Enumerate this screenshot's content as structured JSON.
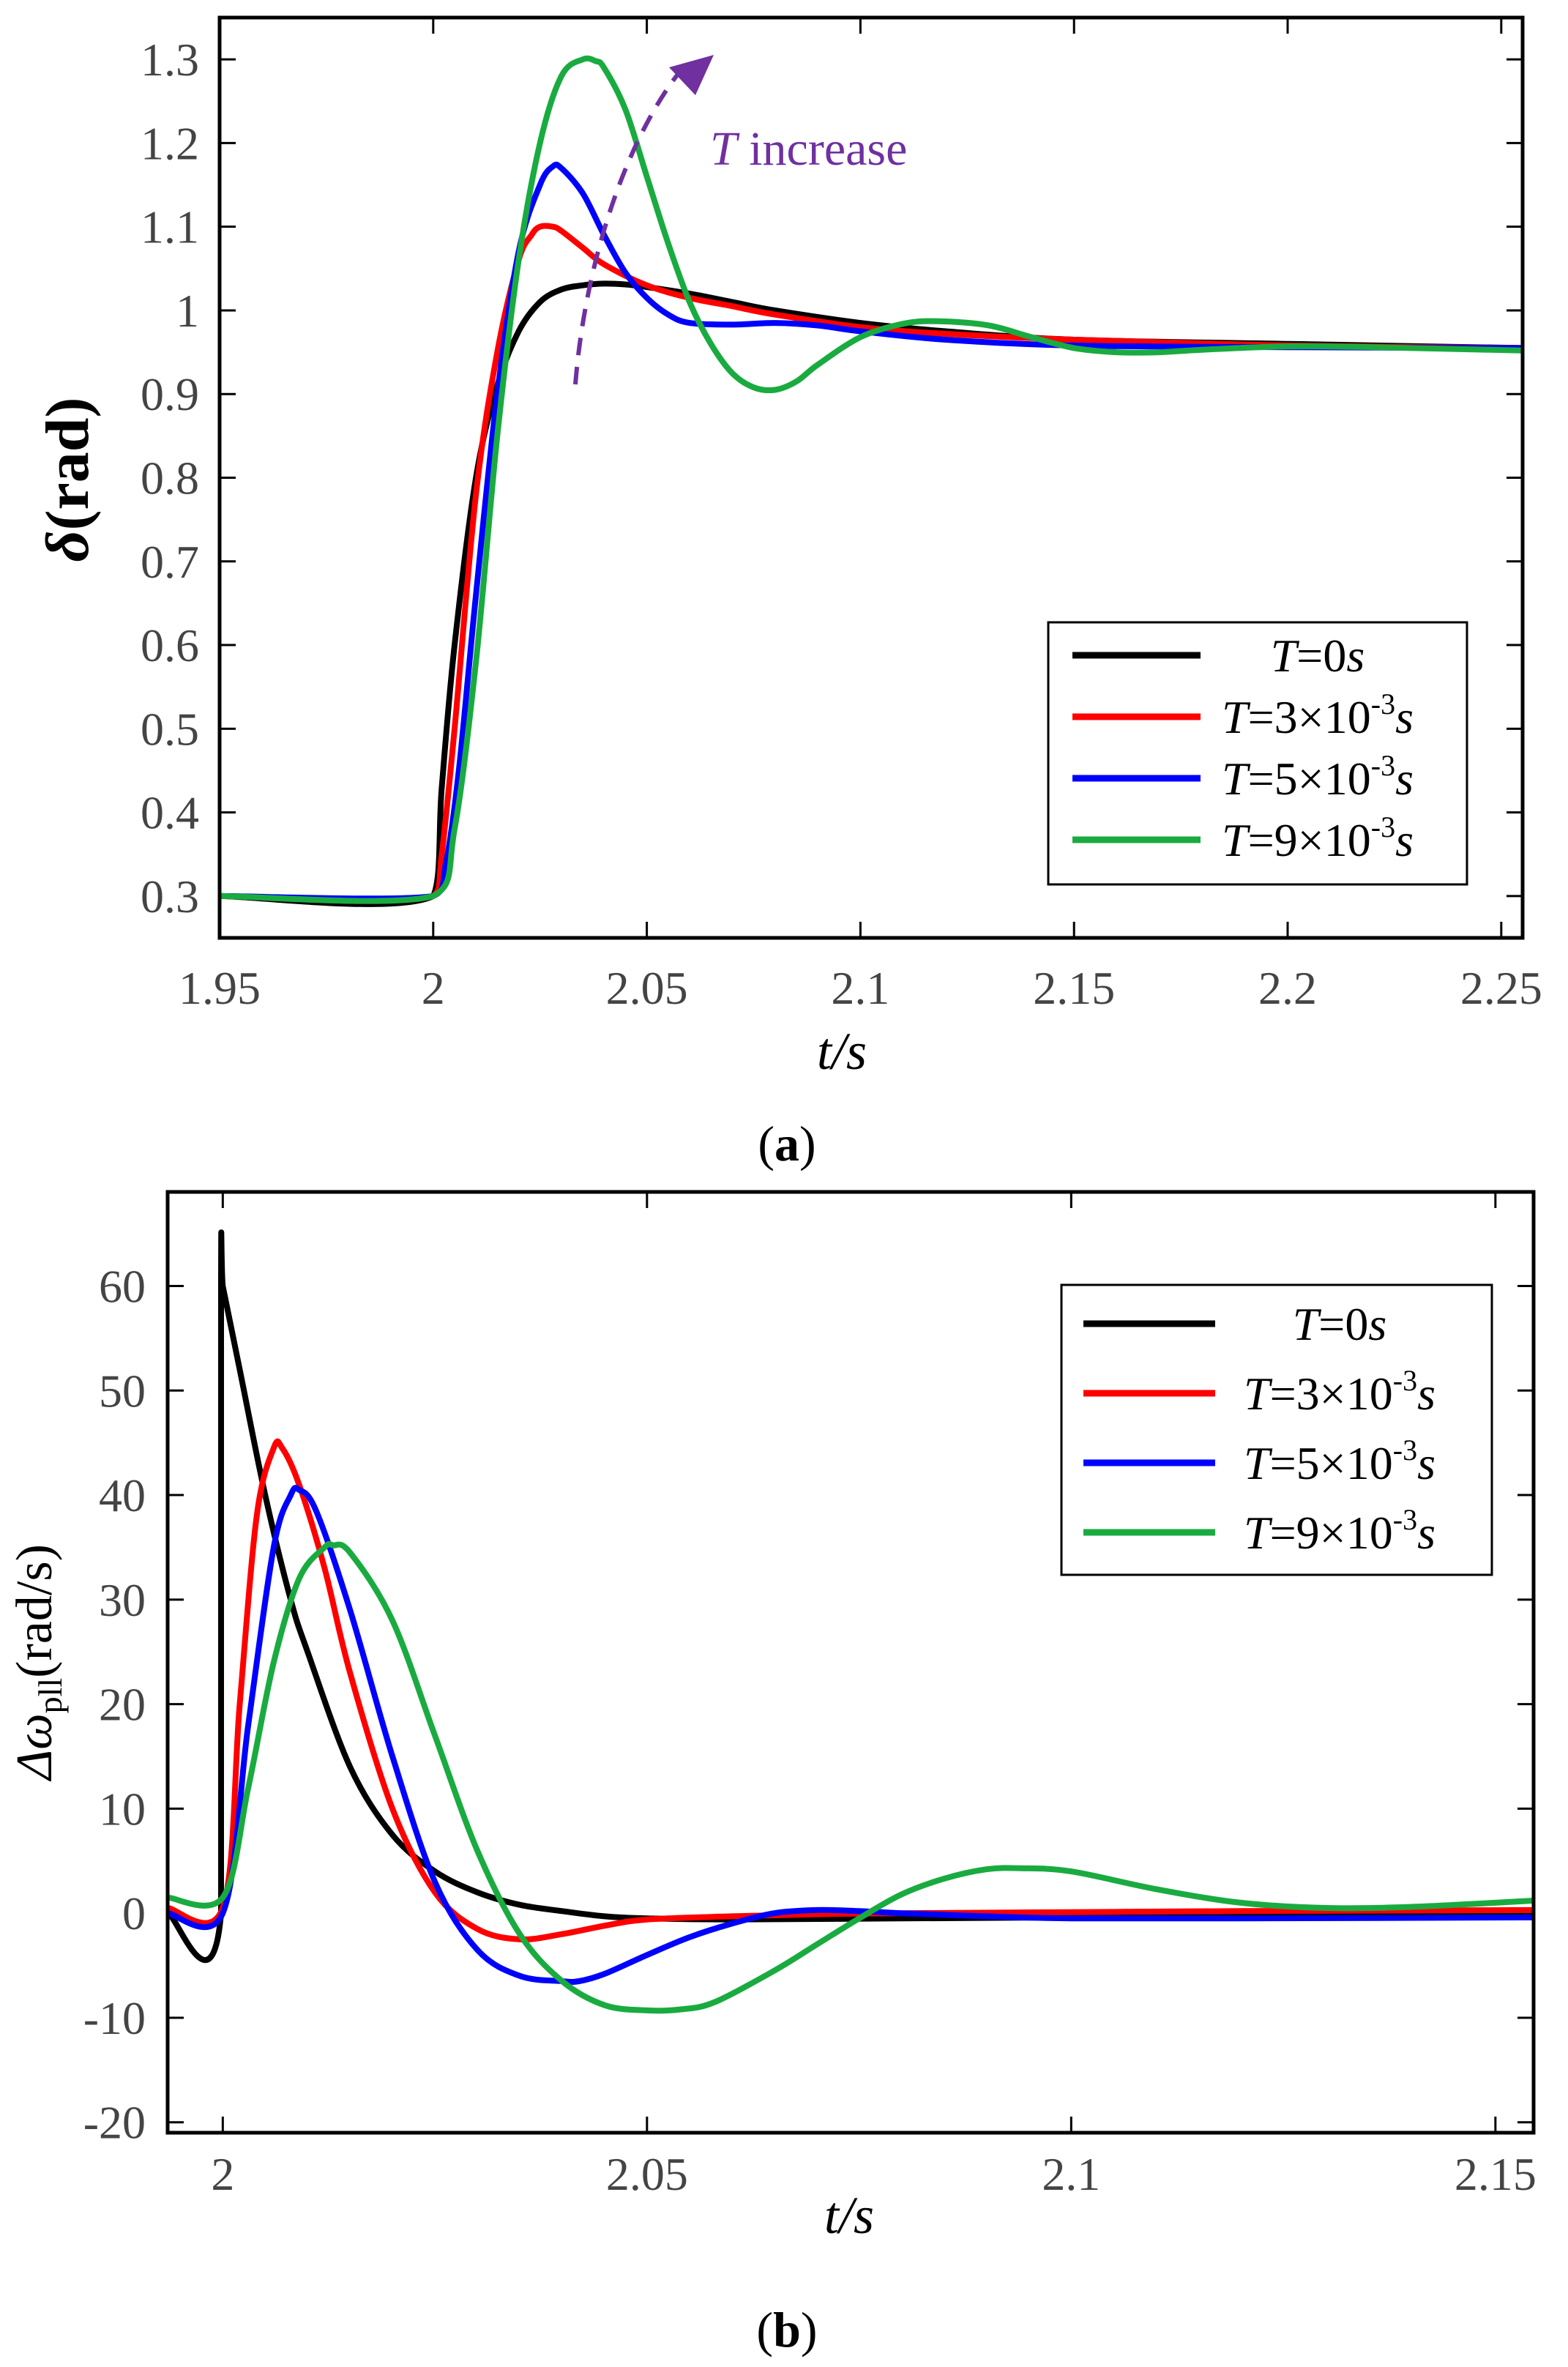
{
  "chart_data": [
    {
      "type": "line",
      "panel": "a",
      "caption_label": "a",
      "xlabel": "t/s",
      "ylabel_symbol": "δ",
      "ylabel_unit": "(rad)",
      "xlim": [
        1.95,
        2.255
      ],
      "ylim": [
        0.25,
        1.35
      ],
      "xticks": [
        1.95,
        2.0,
        2.05,
        2.1,
        2.15,
        2.2,
        2.25
      ],
      "xtick_labels": [
        "1.95",
        "2",
        "2.05",
        "2.1",
        "2.15",
        "2.2",
        "2.25"
      ],
      "yticks": [
        0.3,
        0.4,
        0.5,
        0.6,
        0.7,
        0.8,
        0.9,
        1.0,
        1.1,
        1.2,
        1.3
      ],
      "ytick_labels": [
        "0.3",
        "0.4",
        "0.5",
        "0.6",
        "0.7",
        "0.8",
        "0.9",
        "1",
        "1.1",
        "1.2",
        "1.3"
      ],
      "annotation": {
        "italic": "T",
        "text": " increase",
        "color": "#7030a0"
      },
      "legend_position": "lower-right",
      "series": [
        {
          "name": "T=0s",
          "T": "T",
          "rest": "=0",
          "unit": "s",
          "color": "#000000",
          "x": [
            1.95,
            2.0,
            2.002,
            2.005,
            2.01,
            2.015,
            2.02,
            2.025,
            2.03,
            2.035,
            2.04,
            2.045,
            2.05,
            2.06,
            2.07,
            2.08,
            2.1,
            2.12,
            2.15,
            2.2,
            2.255
          ],
          "y": [
            0.3,
            0.3,
            0.43,
            0.6,
            0.8,
            0.91,
            0.975,
            1.01,
            1.025,
            1.03,
            1.032,
            1.031,
            1.028,
            1.02,
            1.01,
            1.0,
            0.985,
            0.975,
            0.965,
            0.96,
            0.955
          ]
        },
        {
          "name": "T=3×10-3s",
          "T": "T",
          "rest": "=3×10",
          "sup": "-3",
          "unit": "s",
          "color": "#ff0000",
          "x": [
            1.95,
            2.0,
            2.002,
            2.005,
            2.01,
            2.015,
            2.02,
            2.023,
            2.025,
            2.028,
            2.03,
            2.035,
            2.04,
            2.05,
            2.06,
            2.07,
            2.08,
            2.1,
            2.12,
            2.15,
            2.2,
            2.255
          ],
          "y": [
            0.3,
            0.3,
            0.35,
            0.5,
            0.78,
            0.95,
            1.06,
            1.09,
            1.1,
            1.1,
            1.095,
            1.075,
            1.055,
            1.03,
            1.015,
            1.005,
            0.995,
            0.98,
            0.972,
            0.965,
            0.958,
            0.955
          ]
        },
        {
          "name": "T=5×10-3s",
          "T": "T",
          "rest": "=5×10",
          "sup": "-3",
          "unit": "s",
          "color": "#0000ff",
          "x": [
            1.95,
            2.0,
            2.003,
            2.006,
            2.01,
            2.015,
            2.02,
            2.025,
            2.028,
            2.03,
            2.035,
            2.04,
            2.045,
            2.05,
            2.055,
            2.06,
            2.07,
            2.08,
            2.09,
            2.1,
            2.12,
            2.15,
            2.2,
            2.255
          ],
          "y": [
            0.3,
            0.3,
            0.34,
            0.45,
            0.66,
            0.9,
            1.07,
            1.15,
            1.172,
            1.17,
            1.14,
            1.09,
            1.045,
            1.015,
            0.995,
            0.985,
            0.983,
            0.985,
            0.982,
            0.975,
            0.965,
            0.958,
            0.956,
            0.955
          ]
        },
        {
          "name": "T=9×10-3s",
          "T": "T",
          "rest": "=9×10",
          "sup": "-3",
          "unit": "s",
          "color": "#1aab40",
          "x": [
            1.95,
            2.0,
            2.005,
            2.01,
            2.015,
            2.02,
            2.025,
            2.03,
            2.035,
            2.038,
            2.04,
            2.045,
            2.05,
            2.055,
            2.06,
            2.065,
            2.07,
            2.075,
            2.08,
            2.085,
            2.09,
            2.1,
            2.11,
            2.118,
            2.13,
            2.14,
            2.15,
            2.16,
            2.17,
            2.18,
            2.2,
            2.22,
            2.255
          ],
          "y": [
            0.3,
            0.3,
            0.38,
            0.58,
            0.85,
            1.06,
            1.2,
            1.28,
            1.3,
            1.298,
            1.29,
            1.24,
            1.16,
            1.08,
            1.01,
            0.96,
            0.925,
            0.908,
            0.905,
            0.915,
            0.935,
            0.968,
            0.984,
            0.987,
            0.982,
            0.968,
            0.955,
            0.95,
            0.95,
            0.953,
            0.957,
            0.956,
            0.952
          ]
        }
      ]
    },
    {
      "type": "line",
      "panel": "b",
      "caption_label": "b",
      "xlabel": "t/s",
      "ylabel_symbol": "Δω",
      "ylabel_sub": "pll",
      "ylabel_unit": "(rad/s)",
      "xlim": [
        1.9935,
        2.1545
      ],
      "ylim": [
        -21,
        69
      ],
      "xticks": [
        2.0,
        2.05,
        2.1,
        2.15
      ],
      "xtick_labels": [
        "2",
        "2.05",
        "2.1",
        "2.15"
      ],
      "yticks": [
        -20,
        -10,
        0,
        10,
        20,
        30,
        40,
        50,
        60
      ],
      "ytick_labels": [
        "-20",
        "-10",
        "0",
        "10",
        "20",
        "30",
        "40",
        "50",
        "60"
      ],
      "legend_position": "upper-right",
      "series": [
        {
          "name": "T=0s",
          "T": "T",
          "rest": "=0",
          "unit": "s",
          "color": "#000000",
          "x": [
            1.9935,
            1.9998,
            1.9998,
            2.0,
            2.002,
            2.005,
            2.008,
            2.01,
            2.015,
            2.02,
            2.025,
            2.03,
            2.035,
            2.04,
            2.045,
            2.05,
            2.06,
            2.08,
            2.1,
            2.12,
            2.1545
          ],
          "y": [
            0.0,
            0.0,
            60.5,
            60.0,
            52.0,
            40.0,
            30.0,
            25.0,
            14.0,
            7.5,
            4.0,
            2.0,
            0.8,
            0.2,
            -0.3,
            -0.5,
            -0.6,
            -0.5,
            -0.4,
            -0.3,
            -0.2
          ]
        },
        {
          "name": "T=3×10-3s",
          "T": "T",
          "rest": "=3×10",
          "sup": "-3",
          "unit": "s",
          "color": "#ff0000",
          "x": [
            1.9935,
            2.0,
            2.002,
            2.004,
            2.006,
            2.007,
            2.009,
            2.012,
            2.015,
            2.02,
            2.025,
            2.03,
            2.035,
            2.04,
            2.045,
            2.05,
            2.06,
            2.07,
            2.08,
            2.1,
            2.12,
            2.1545
          ],
          "y": [
            0.5,
            0.5,
            20.0,
            38.0,
            44.5,
            44.5,
            41.0,
            33.0,
            23.0,
            10.0,
            2.0,
            -1.5,
            -2.5,
            -2.0,
            -1.2,
            -0.6,
            -0.3,
            -0.1,
            0.0,
            0.1,
            0.2,
            0.3
          ]
        },
        {
          "name": "T=5×10-3s",
          "T": "T",
          "rest": "=5×10",
          "sup": "-3",
          "unit": "s",
          "color": "#0000ff",
          "x": [
            1.9935,
            2.0,
            2.003,
            2.006,
            2.008,
            2.009,
            2.011,
            2.015,
            2.02,
            2.025,
            2.03,
            2.035,
            2.04,
            2.042,
            2.045,
            2.05,
            2.055,
            2.06,
            2.065,
            2.07,
            2.075,
            2.08,
            2.09,
            2.1,
            2.12,
            2.1545
          ],
          "y": [
            0.0,
            0.0,
            18.0,
            35.0,
            40.0,
            40.5,
            38.5,
            29.0,
            15.0,
            3.0,
            -3.5,
            -6.0,
            -6.5,
            -6.5,
            -5.8,
            -4.0,
            -2.3,
            -1.0,
            0.0,
            0.3,
            0.2,
            0.0,
            -0.3,
            -0.5,
            -0.5,
            -0.4
          ]
        },
        {
          "name": "T=9×10-3s",
          "T": "T",
          "rest": "=9×10",
          "sup": "-3",
          "unit": "s",
          "color": "#1aab40",
          "x": [
            1.9935,
            2.0,
            2.003,
            2.006,
            2.009,
            2.012,
            2.013,
            2.015,
            2.02,
            2.025,
            2.03,
            2.035,
            2.04,
            2.045,
            2.05,
            2.054,
            2.058,
            2.065,
            2.07,
            2.075,
            2.08,
            2.085,
            2.09,
            2.094,
            2.1,
            2.11,
            2.12,
            2.13,
            2.14,
            2.15,
            2.1545
          ],
          "y": [
            1.5,
            1.5,
            12.0,
            24.0,
            32.0,
            35.0,
            35.2,
            34.5,
            28.0,
            17.0,
            6.0,
            -2.0,
            -6.5,
            -8.8,
            -9.3,
            -9.2,
            -8.5,
            -5.5,
            -3.0,
            -0.5,
            1.8,
            3.3,
            4.2,
            4.3,
            4.0,
            2.3,
            1.0,
            0.5,
            0.6,
            1.0,
            1.2
          ]
        }
      ]
    }
  ]
}
